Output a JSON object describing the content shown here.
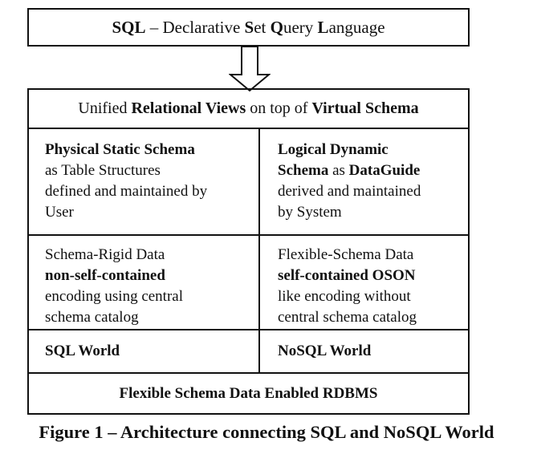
{
  "title_box": {
    "parts": [
      {
        "text": "SQL",
        "bold": true
      },
      {
        "text": " – Declarative ",
        "bold": false
      },
      {
        "text": "S",
        "bold": true
      },
      {
        "text": "et ",
        "bold": false
      },
      {
        "text": "Q",
        "bold": true
      },
      {
        "text": "uery ",
        "bold": false
      },
      {
        "text": "L",
        "bold": true
      },
      {
        "text": "anguage",
        "bold": false
      }
    ]
  },
  "views_row": {
    "parts": [
      {
        "text": "Unified ",
        "bold": false
      },
      {
        "text": "Relational Views",
        "bold": true
      },
      {
        "text": " on top of ",
        "bold": false
      },
      {
        "text": "Virtual Schema",
        "bold": true
      }
    ]
  },
  "schema_left": {
    "lines": [
      [
        {
          "text": "Physical Static Schema",
          "bold": true
        }
      ],
      [
        {
          "text": "as Table Structures",
          "bold": false
        }
      ],
      [
        {
          "text": "defined and maintained by",
          "bold": false
        }
      ],
      [
        {
          "text": "User",
          "bold": false
        }
      ]
    ]
  },
  "schema_right": {
    "lines": [
      [
        {
          "text": "Logical Dynamic",
          "bold": true
        }
      ],
      [
        {
          "text": "Schema",
          "bold": true
        },
        {
          "text": " as ",
          "bold": false
        },
        {
          "text": "DataGuide",
          "bold": true
        }
      ],
      [
        {
          "text": "derived and maintained",
          "bold": false
        }
      ],
      [
        {
          "text": "by System",
          "bold": false
        }
      ]
    ]
  },
  "data_left": {
    "lines": [
      [
        {
          "text": "Schema-Rigid Data",
          "bold": false
        }
      ],
      [
        {
          "text": "non-self-contained",
          "bold": true
        }
      ],
      [
        {
          "text": "encoding using central",
          "bold": false
        }
      ],
      [
        {
          "text": "schema catalog",
          "bold": false
        }
      ]
    ]
  },
  "data_right": {
    "lines": [
      [
        {
          "text": "Flexible-Schema Data",
          "bold": false
        }
      ],
      [
        {
          "text": "self-contained OSON",
          "bold": true
        }
      ],
      [
        {
          "text": "like encoding without",
          "bold": false
        }
      ],
      [
        {
          "text": "central schema catalog",
          "bold": false
        }
      ]
    ]
  },
  "world_left": "SQL World",
  "world_right": "NoSQL World",
  "rdbms_box": "Flexible Schema Data Enabled RDBMS",
  "caption": "Figure 1 – Architecture connecting SQL and NoSQL World"
}
